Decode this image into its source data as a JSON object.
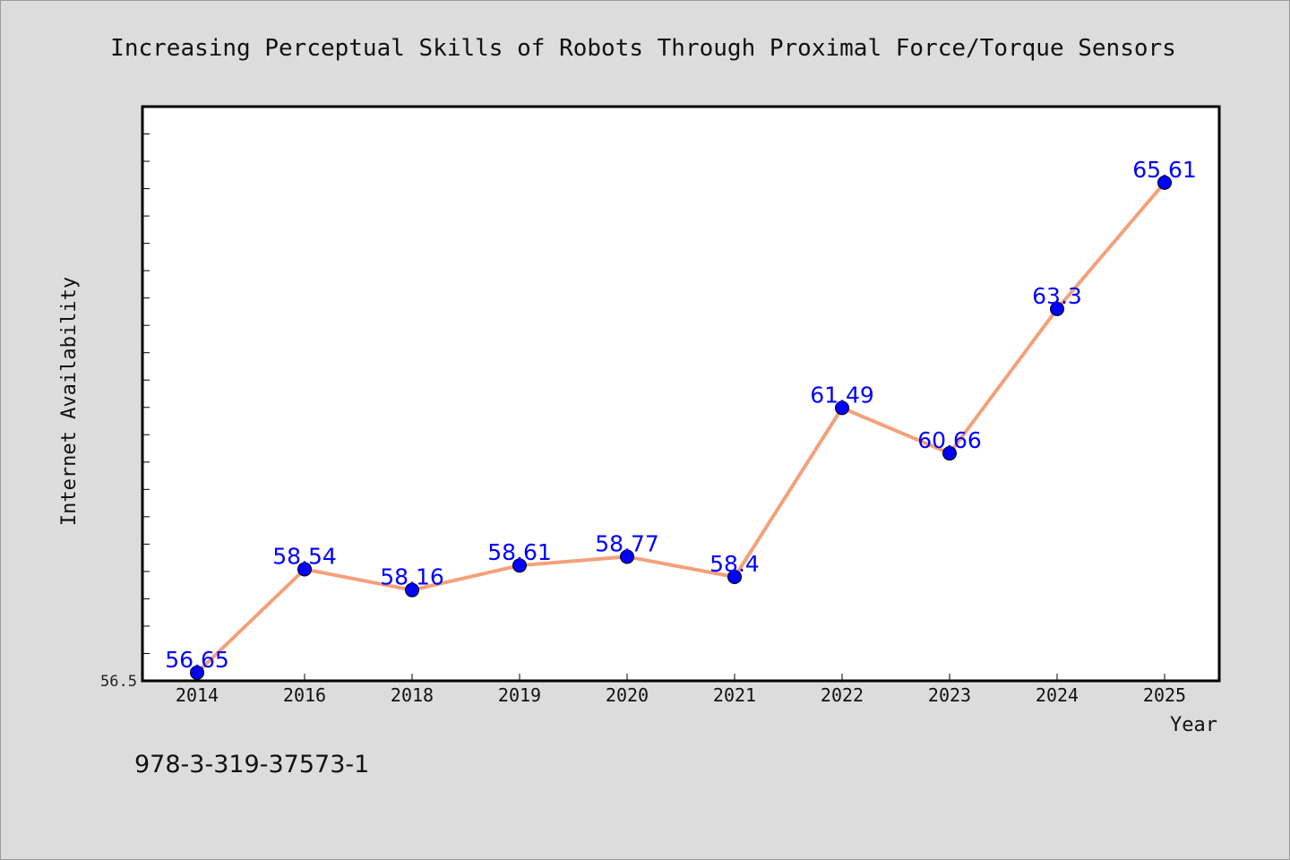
{
  "chart_data": {
    "type": "line",
    "title": "Increasing Perceptual Skills of Robots Through Proximal Force/Torque Sensors",
    "xlabel": "Year",
    "ylabel": "Internet Availability",
    "categories": [
      "2014",
      "2016",
      "2018",
      "2019",
      "2020",
      "2021",
      "2022",
      "2023",
      "2024",
      "2025"
    ],
    "series": [
      {
        "values": [
          56.65,
          58.54,
          58.16,
          58.61,
          58.77,
          58.4,
          61.49,
          60.66,
          63.3,
          65.61
        ],
        "labels": [
          "56.65",
          "58.54",
          "58.16",
          "58.61",
          "58.77",
          "58.4",
          "61.49",
          "60.66",
          "63.3",
          "65.61"
        ]
      }
    ],
    "ylim": [
      56.5,
      67
    ],
    "yticks_labeled": [
      "56.5"
    ],
    "grid": false,
    "legend": "none",
    "colors": {
      "line": "#f4a07a",
      "marker": "#0000ff",
      "label": "#0000ff",
      "background": "#dcdcdc",
      "plot_background": "#ffffff"
    }
  },
  "footer": {
    "isbn": "978-3-319-37573-1"
  }
}
